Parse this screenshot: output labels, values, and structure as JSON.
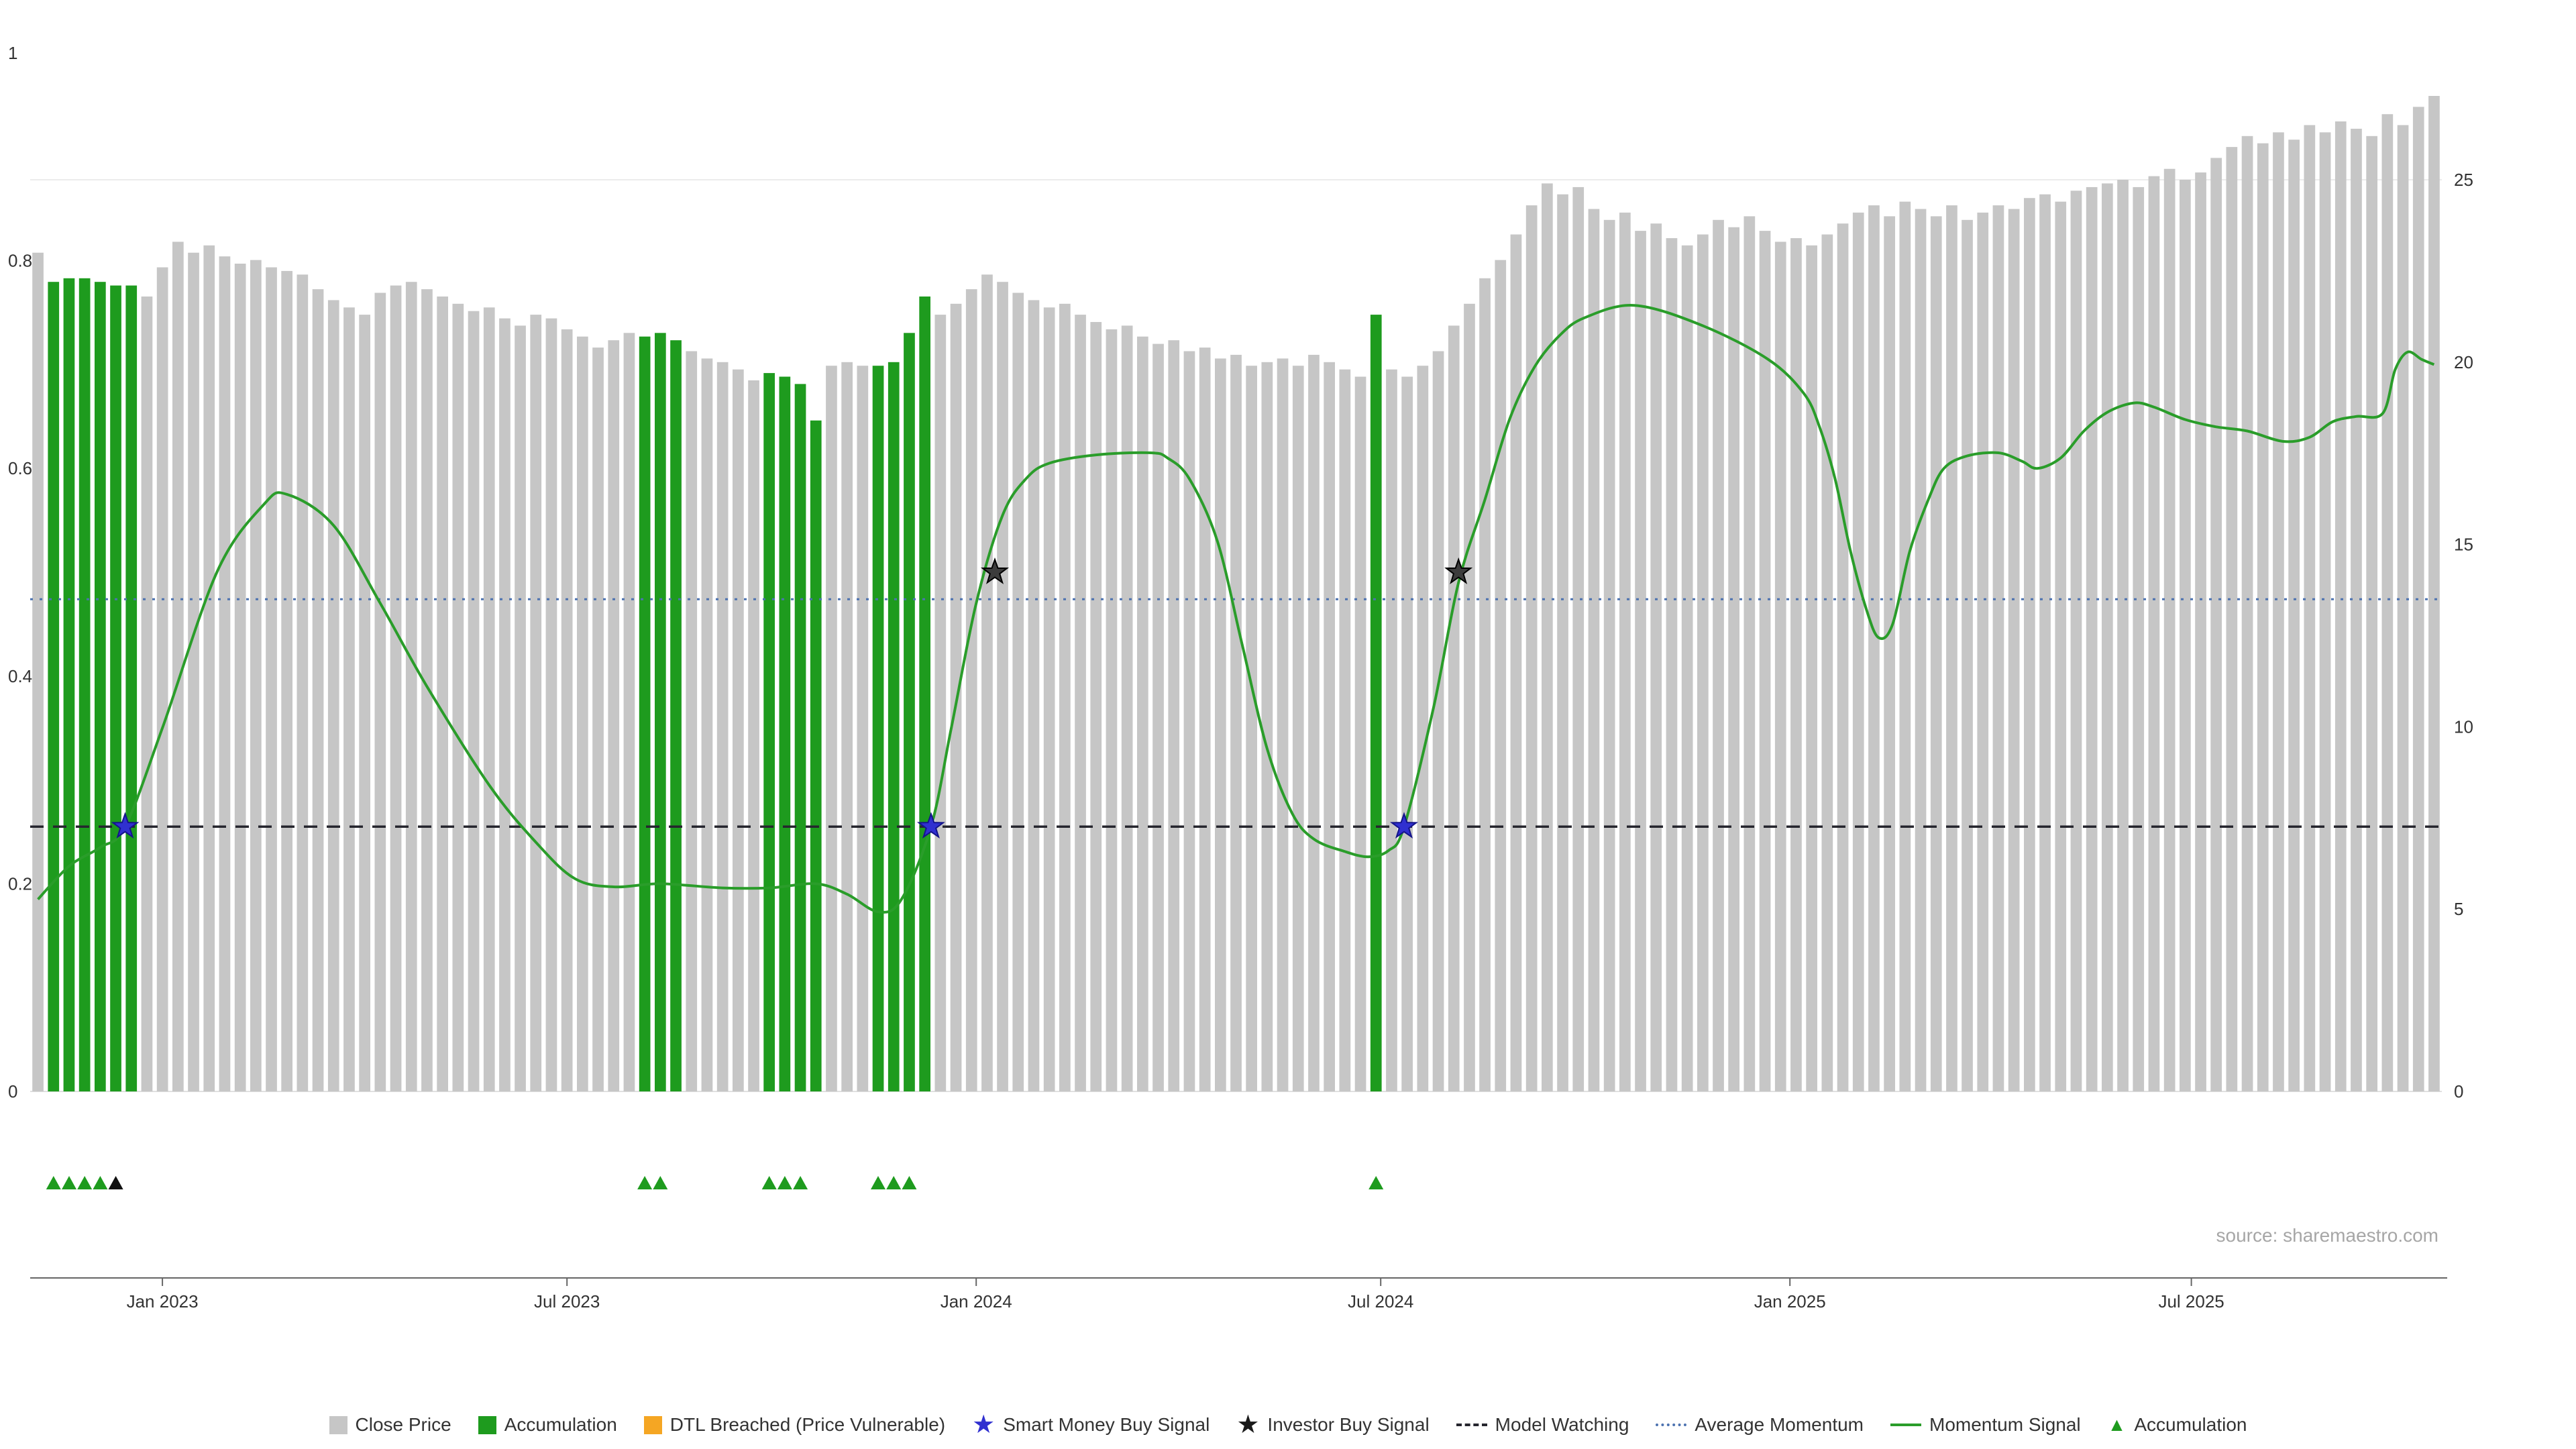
{
  "source_note": "source: sharemaestro.com",
  "colors": {
    "bar": "#c6c6c6",
    "accumulation_bar": "#1e9b1e",
    "momentum_line": "#2a9d2a",
    "average_momentum_line": "#4c72b0",
    "model_watching_line": "#26262e",
    "smart_money_star": "#3030d0",
    "smart_money_star_edge": "#14148a",
    "investor_star": "#3c3c3c",
    "investor_star_edge": "#000000",
    "dtl_breached": "#f5a623",
    "accumulation_triangle": "#1e9b1e",
    "dark_triangle": "#111111",
    "axis_text": "#333333",
    "axis_line": "#666666",
    "gridline": "#ececec",
    "baseline": "#e0e0e0"
  },
  "chart_data": {
    "type": "bar",
    "x_ticks": [
      {
        "label": "Jan 2023",
        "week": 8.0
      },
      {
        "label": "Jul 2023",
        "week": 34.0
      },
      {
        "label": "Jan 2024",
        "week": 60.3
      },
      {
        "label": "Jul 2024",
        "week": 86.3
      },
      {
        "label": "Jan 2025",
        "week": 112.6
      },
      {
        "label": "Jul 2025",
        "week": 138.4
      }
    ],
    "left_axis_ticks": [
      {
        "v": 0,
        "label": "0"
      },
      {
        "v": 0.2,
        "label": "0.2"
      },
      {
        "v": 0.4,
        "label": "0.4"
      },
      {
        "v": 0.6,
        "label": "0.6"
      },
      {
        "v": 0.8,
        "label": "0.8"
      },
      {
        "v": 1,
        "label": "1"
      }
    ],
    "right_axis_ticks": [
      {
        "v": 0,
        "label": "0"
      },
      {
        "v": 5,
        "label": "5"
      },
      {
        "v": 10,
        "label": "10"
      },
      {
        "v": 15,
        "label": "15"
      },
      {
        "v": 20,
        "label": "20"
      },
      {
        "v": 25,
        "label": "25"
      }
    ],
    "left_axis_range": [
      0,
      1
    ],
    "right_axis_range": [
      0,
      28.5
    ],
    "close_price": [
      23.0,
      22.2,
      22.3,
      22.3,
      22.2,
      22.1,
      22.1,
      21.8,
      22.6,
      23.3,
      23.0,
      23.2,
      22.9,
      22.7,
      22.8,
      22.6,
      22.5,
      22.4,
      22.0,
      21.7,
      21.5,
      21.3,
      21.9,
      22.1,
      22.2,
      22.0,
      21.8,
      21.6,
      21.4,
      21.5,
      21.2,
      21.0,
      21.3,
      21.2,
      20.9,
      20.7,
      20.4,
      20.6,
      20.8,
      20.7,
      20.8,
      20.6,
      20.3,
      20.1,
      20.0,
      19.8,
      19.5,
      19.7,
      19.6,
      19.4,
      18.4,
      19.9,
      20.0,
      19.9,
      19.9,
      20.0,
      20.8,
      21.8,
      21.3,
      21.6,
      22.0,
      22.4,
      22.2,
      21.9,
      21.7,
      21.5,
      21.6,
      21.3,
      21.1,
      20.9,
      21.0,
      20.7,
      20.5,
      20.6,
      20.3,
      20.4,
      20.1,
      20.2,
      19.9,
      20.0,
      20.1,
      19.9,
      20.2,
      20.0,
      19.8,
      19.6,
      21.3,
      19.8,
      19.6,
      19.9,
      20.3,
      21.0,
      21.6,
      22.3,
      22.8,
      23.5,
      24.3,
      24.9,
      24.6,
      24.8,
      24.2,
      23.9,
      24.1,
      23.6,
      23.8,
      23.4,
      23.2,
      23.5,
      23.9,
      23.7,
      24.0,
      23.6,
      23.3,
      23.4,
      23.2,
      23.5,
      23.8,
      24.1,
      24.3,
      24.0,
      24.4,
      24.2,
      24.0,
      24.3,
      23.9,
      24.1,
      24.3,
      24.2,
      24.5,
      24.6,
      24.4,
      24.7,
      24.8,
      24.9,
      25.0,
      24.8,
      25.1,
      25.3,
      25.0,
      25.2,
      25.6,
      25.9,
      26.2,
      26.0,
      26.3,
      26.1,
      26.5,
      26.3,
      26.6,
      26.4,
      26.2,
      26.8,
      26.5,
      27.0,
      27.3
    ],
    "accumulation_weeks": [
      1,
      2,
      3,
      4,
      5,
      6,
      39,
      40,
      41,
      47,
      48,
      49,
      50,
      54,
      55,
      56,
      57,
      86
    ],
    "momentum_signal": [
      [
        0,
        0.185
      ],
      [
        2,
        0.217
      ],
      [
        4,
        0.235
      ],
      [
        5.6,
        0.255
      ],
      [
        8,
        0.35
      ],
      [
        11.5,
        0.5
      ],
      [
        14.5,
        0.565
      ],
      [
        16,
        0.575
      ],
      [
        19,
        0.545
      ],
      [
        22,
        0.47
      ],
      [
        25,
        0.39
      ],
      [
        29,
        0.295
      ],
      [
        32,
        0.24
      ],
      [
        34.5,
        0.205
      ],
      [
        37,
        0.197
      ],
      [
        40,
        0.2
      ],
      [
        44,
        0.196
      ],
      [
        47,
        0.196
      ],
      [
        50,
        0.2
      ],
      [
        52,
        0.19
      ],
      [
        54,
        0.173
      ],
      [
        55.5,
        0.185
      ],
      [
        57.4,
        0.255
      ],
      [
        58.7,
        0.35
      ],
      [
        60.3,
        0.47
      ],
      [
        62,
        0.555
      ],
      [
        63.5,
        0.59
      ],
      [
        65,
        0.605
      ],
      [
        68,
        0.613
      ],
      [
        71.5,
        0.615
      ],
      [
        72.6,
        0.61
      ],
      [
        74,
        0.59
      ],
      [
        75.8,
        0.53
      ],
      [
        77.4,
        0.43
      ],
      [
        79,
        0.33
      ],
      [
        80.6,
        0.268
      ],
      [
        82,
        0.243
      ],
      [
        84,
        0.231
      ],
      [
        85.5,
        0.226
      ],
      [
        86.8,
        0.232
      ],
      [
        87.8,
        0.255
      ],
      [
        89.7,
        0.37
      ],
      [
        91.3,
        0.49
      ],
      [
        93,
        0.57
      ],
      [
        94.6,
        0.648
      ],
      [
        96.2,
        0.698
      ],
      [
        97.8,
        0.728
      ],
      [
        99.4,
        0.745
      ],
      [
        102.6,
        0.757
      ],
      [
        106.9,
        0.738
      ],
      [
        111.2,
        0.705
      ],
      [
        113.5,
        0.672
      ],
      [
        114.5,
        0.64
      ],
      [
        115.5,
        0.59
      ],
      [
        116.5,
        0.52
      ],
      [
        117.5,
        0.465
      ],
      [
        118.3,
        0.437
      ],
      [
        119.2,
        0.45
      ],
      [
        120.3,
        0.52
      ],
      [
        121.5,
        0.57
      ],
      [
        122.5,
        0.6
      ],
      [
        124,
        0.612
      ],
      [
        126,
        0.615
      ],
      [
        127.5,
        0.607
      ],
      [
        128.5,
        0.6
      ],
      [
        130,
        0.61
      ],
      [
        131.5,
        0.636
      ],
      [
        133,
        0.654
      ],
      [
        134.7,
        0.663
      ],
      [
        136,
        0.659
      ],
      [
        138,
        0.647
      ],
      [
        140,
        0.64
      ],
      [
        142,
        0.636
      ],
      [
        144.3,
        0.626
      ],
      [
        146,
        0.63
      ],
      [
        147.5,
        0.645
      ],
      [
        149,
        0.65
      ],
      [
        150.7,
        0.653
      ],
      [
        151.5,
        0.695
      ],
      [
        152.3,
        0.712
      ],
      [
        153.2,
        0.705
      ],
      [
        154,
        0.7
      ]
    ],
    "average_momentum_level": 0.474,
    "model_watching_level": 0.255,
    "smart_money_buy_signals": [
      {
        "week": 5.6,
        "level": 0.255
      },
      {
        "week": 57.4,
        "level": 0.255
      },
      {
        "week": 87.8,
        "level": 0.255
      }
    ],
    "investor_buy_signals": [
      {
        "week": 61.5,
        "level": 0.5
      },
      {
        "week": 91.3,
        "level": 0.5
      }
    ],
    "accumulation_marker_weeks": [
      1,
      2,
      3,
      4,
      39,
      40,
      47,
      48,
      49,
      54,
      55,
      56,
      86
    ],
    "dark_marker_weeks": [
      5
    ]
  },
  "legend": {
    "items": [
      {
        "label": "Close Price",
        "marker": "square",
        "color": "#c6c6c6"
      },
      {
        "label": "Accumulation",
        "marker": "square",
        "color": "#1e9b1e"
      },
      {
        "label": "DTL Breached (Price Vulnerable)",
        "marker": "square",
        "color": "#f5a623"
      },
      {
        "label": "Smart Money Buy Signal",
        "marker": "star",
        "color": "#3030d0"
      },
      {
        "label": "Investor Buy Signal",
        "marker": "star",
        "color": "#1a1a1a"
      },
      {
        "label": "Model Watching",
        "marker": "dash",
        "color": "#26262e"
      },
      {
        "label": "Average Momentum",
        "marker": "dot",
        "color": "#4c72b0"
      },
      {
        "label": "Momentum Signal",
        "marker": "line",
        "color": "#2a9d2a"
      },
      {
        "label": "Accumulation",
        "marker": "triangle",
        "color": "#1e9b1e"
      }
    ]
  }
}
